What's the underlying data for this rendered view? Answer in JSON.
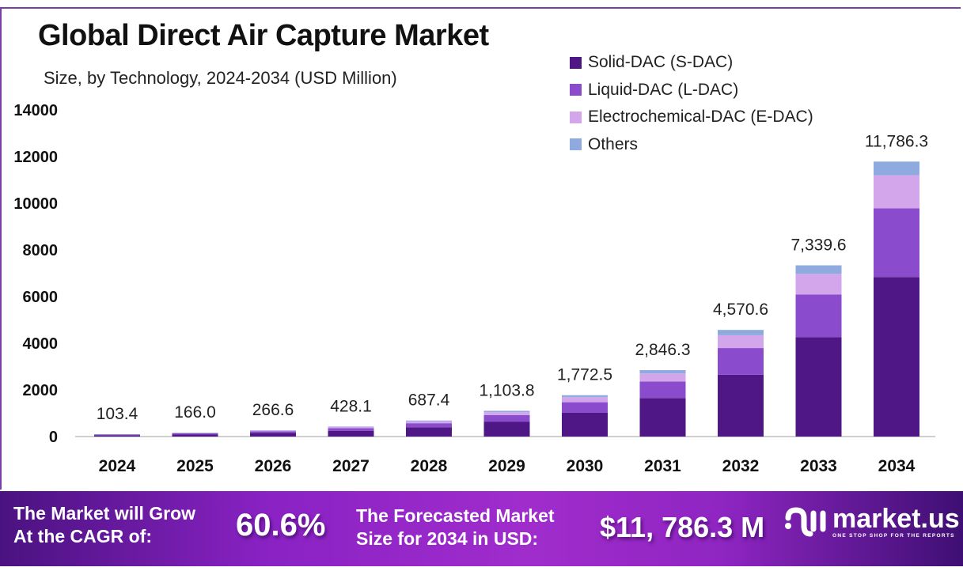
{
  "header": {
    "title": "Global Direct Air Capture Market",
    "subtitle": "Size, by Technology, 2024-2034 (USD Million)"
  },
  "colors": {
    "s_dac": "#4f1785",
    "l_dac": "#8a4bcc",
    "e_dac": "#d3a6ec",
    "others": "#8eaadf",
    "frame": "#7a3fa6"
  },
  "chart_data": {
    "type": "bar",
    "stacked": true,
    "title": "Global Direct Air Capture Market",
    "subtitle": "Size, by Technology, 2024-2034 (USD Million)",
    "xlabel": "",
    "ylabel": "",
    "ylim": [
      0,
      14000
    ],
    "yticks": [
      "0",
      "2000",
      "4000",
      "6000",
      "8000",
      "10000",
      "12000",
      "14000"
    ],
    "grid": false,
    "legend_position": "top-right",
    "categories": [
      "2024",
      "2025",
      "2026",
      "2027",
      "2028",
      "2029",
      "2030",
      "2031",
      "2032",
      "2033",
      "2034"
    ],
    "totals": [
      103.4,
      166.0,
      266.6,
      428.1,
      687.4,
      1103.8,
      1772.5,
      2846.3,
      4570.6,
      7339.6,
      11786.3
    ],
    "total_labels": [
      "103.4",
      "166.0",
      "266.6",
      "428.1",
      "687.4",
      "1,103.8",
      "1,772.5",
      "2,846.3",
      "4,570.6",
      "7,339.6",
      "11,786.3"
    ],
    "series": [
      {
        "name": "Solid-DAC (S-DAC)",
        "values": [
          59.9,
          96.3,
          154.6,
          248.3,
          398.7,
          640.2,
          1028.1,
          1650.9,
          2651.0,
          4257.0,
          6836.1
        ]
      },
      {
        "name": "Liquid-DAC (L-DAC)",
        "values": [
          25.9,
          41.5,
          66.7,
          107.0,
          171.9,
          275.9,
          443.1,
          711.6,
          1142.7,
          1834.9,
          2946.6
        ]
      },
      {
        "name": "Electrochemical-DAC (E-DAC)",
        "values": [
          12.4,
          19.9,
          32.0,
          51.4,
          82.5,
          132.5,
          212.7,
          341.6,
          548.5,
          880.8,
          1414.4
        ]
      },
      {
        "name": "Others",
        "values": [
          5.2,
          8.3,
          13.3,
          21.4,
          34.3,
          55.2,
          88.6,
          142.2,
          228.4,
          366.9,
          589.2
        ]
      }
    ]
  },
  "banner": {
    "cagr_label_line1": "The Market will Grow",
    "cagr_label_line2": "At the CAGR of:",
    "cagr_value": "60.6%",
    "forecast_label_line1": "The Forecasted Market",
    "forecast_label_line2": "Size for 2034 in USD:",
    "forecast_value": "$11, 786.3 M",
    "logo_name": "market.us",
    "logo_tagline": "ONE STOP SHOP FOR THE REPORTS"
  }
}
